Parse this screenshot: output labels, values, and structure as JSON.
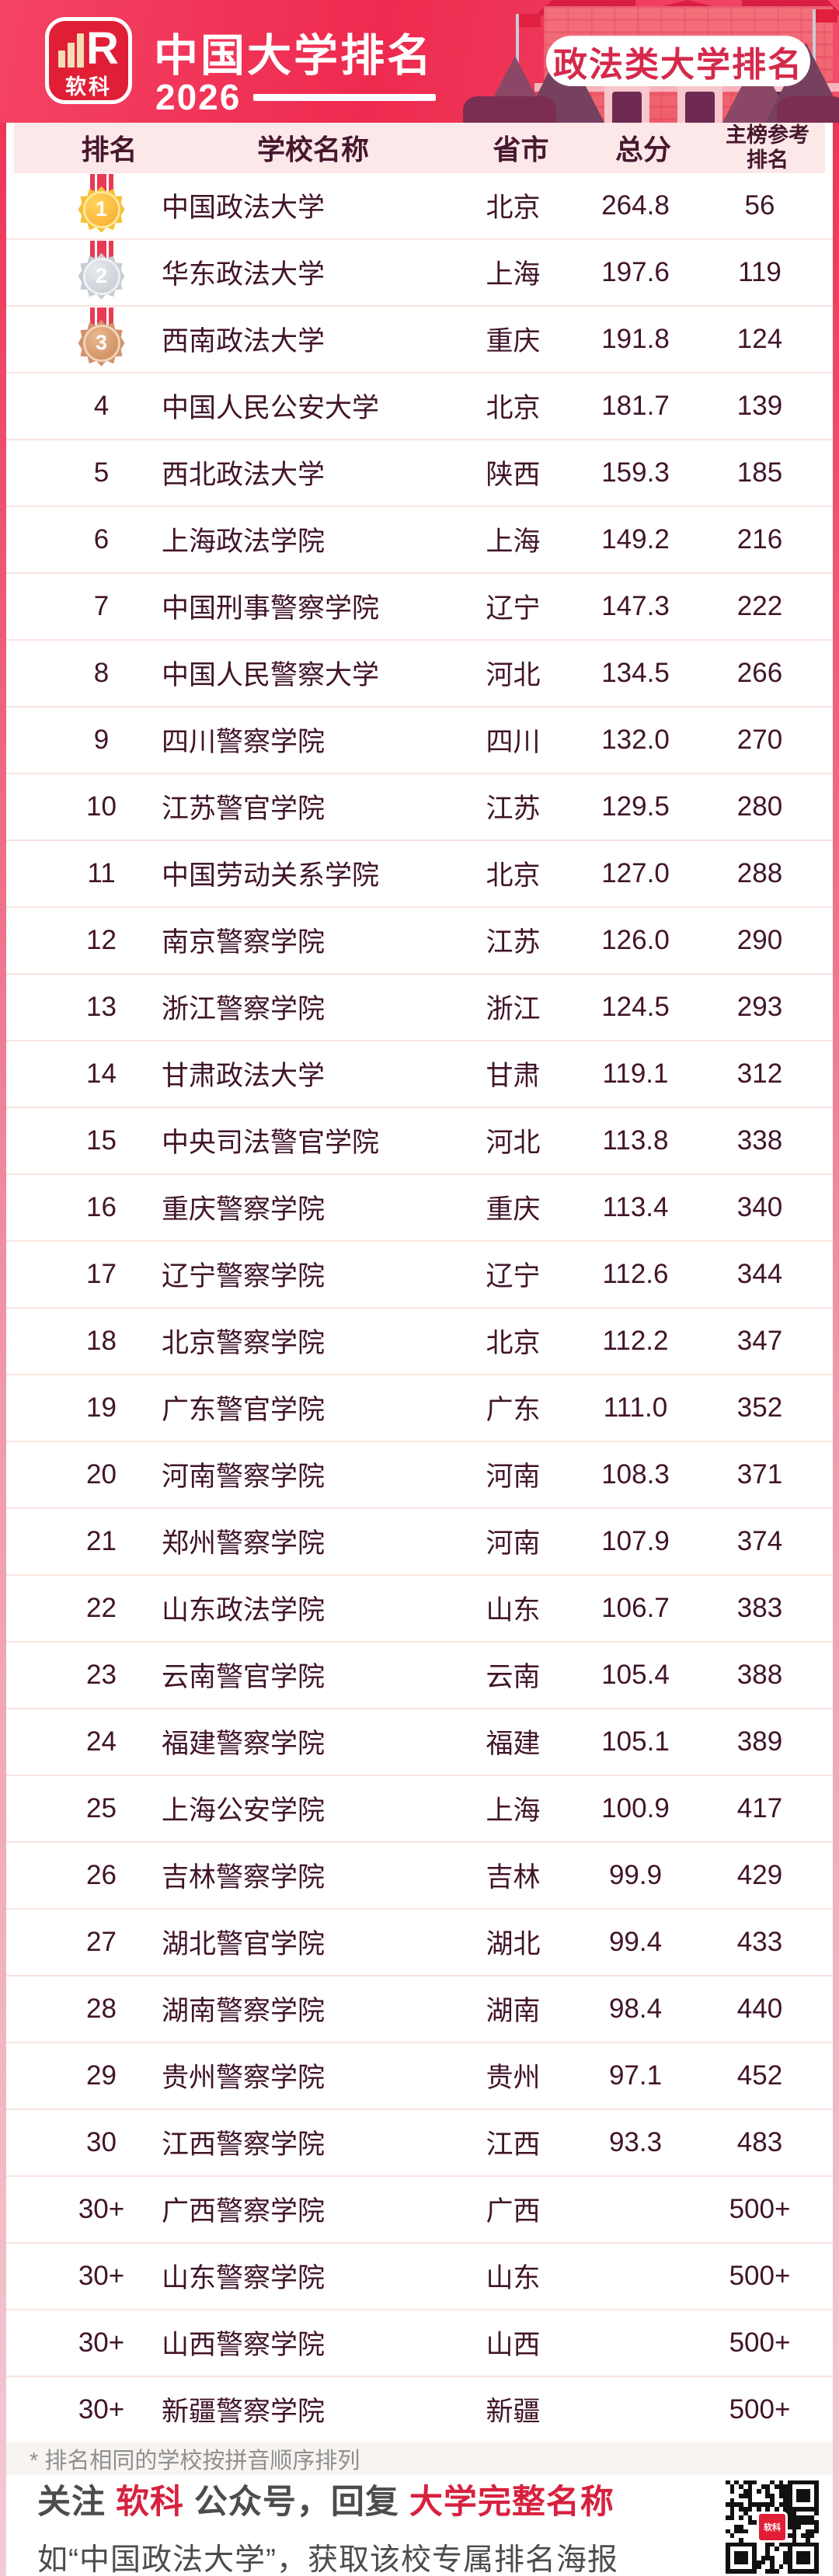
{
  "banner": {
    "logo_r": "R",
    "logo_text": "软科",
    "title": "中国大学排名",
    "year": "2026",
    "badge": "政法类大学排名"
  },
  "table_headers": {
    "rank": "排名",
    "school": "学校名称",
    "province": "省市",
    "score": "总分",
    "ref1": "主榜参考",
    "ref2": "排名"
  },
  "chart_data": {
    "type": "table",
    "title": "软科中国大学排名2026 · 政法类大学排名",
    "columns": [
      "排名",
      "学校名称",
      "省市",
      "总分",
      "主榜参考排名"
    ],
    "rows": [
      [
        "1",
        "中国政法大学",
        "北京",
        "264.8",
        "56"
      ],
      [
        "2",
        "华东政法大学",
        "上海",
        "197.6",
        "119"
      ],
      [
        "3",
        "西南政法大学",
        "重庆",
        "191.8",
        "124"
      ],
      [
        "4",
        "中国人民公安大学",
        "北京",
        "181.7",
        "139"
      ],
      [
        "5",
        "西北政法大学",
        "陕西",
        "159.3",
        "185"
      ],
      [
        "6",
        "上海政法学院",
        "上海",
        "149.2",
        "216"
      ],
      [
        "7",
        "中国刑事警察学院",
        "辽宁",
        "147.3",
        "222"
      ],
      [
        "8",
        "中国人民警察大学",
        "河北",
        "134.5",
        "266"
      ],
      [
        "9",
        "四川警察学院",
        "四川",
        "132.0",
        "270"
      ],
      [
        "10",
        "江苏警官学院",
        "江苏",
        "129.5",
        "280"
      ],
      [
        "11",
        "中国劳动关系学院",
        "北京",
        "127.0",
        "288"
      ],
      [
        "12",
        "南京警察学院",
        "江苏",
        "126.0",
        "290"
      ],
      [
        "13",
        "浙江警察学院",
        "浙江",
        "124.5",
        "293"
      ],
      [
        "14",
        "甘肃政法大学",
        "甘肃",
        "119.1",
        "312"
      ],
      [
        "15",
        "中央司法警官学院",
        "河北",
        "113.8",
        "338"
      ],
      [
        "16",
        "重庆警察学院",
        "重庆",
        "113.4",
        "340"
      ],
      [
        "17",
        "辽宁警察学院",
        "辽宁",
        "112.6",
        "344"
      ],
      [
        "18",
        "北京警察学院",
        "北京",
        "112.2",
        "347"
      ],
      [
        "19",
        "广东警官学院",
        "广东",
        "111.0",
        "352"
      ],
      [
        "20",
        "河南警察学院",
        "河南",
        "108.3",
        "371"
      ],
      [
        "21",
        "郑州警察学院",
        "河南",
        "107.9",
        "374"
      ],
      [
        "22",
        "山东政法学院",
        "山东",
        "106.7",
        "383"
      ],
      [
        "23",
        "云南警官学院",
        "云南",
        "105.4",
        "388"
      ],
      [
        "24",
        "福建警察学院",
        "福建",
        "105.1",
        "389"
      ],
      [
        "25",
        "上海公安学院",
        "上海",
        "100.9",
        "417"
      ],
      [
        "26",
        "吉林警察学院",
        "吉林",
        "99.9",
        "429"
      ],
      [
        "27",
        "湖北警官学院",
        "湖北",
        "99.4",
        "433"
      ],
      [
        "28",
        "湖南警察学院",
        "湖南",
        "98.4",
        "440"
      ],
      [
        "29",
        "贵州警察学院",
        "贵州",
        "97.1",
        "452"
      ],
      [
        "30",
        "江西警察学院",
        "江西",
        "93.3",
        "483"
      ],
      [
        "30+",
        "广西警察学院",
        "广西",
        "",
        "500+"
      ],
      [
        "30+",
        "山东警察学院",
        "山东",
        "",
        "500+"
      ],
      [
        "30+",
        "山西警察学院",
        "山西",
        "",
        "500+"
      ],
      [
        "30+",
        "新疆警察学院",
        "新疆",
        "",
        "500+"
      ]
    ]
  },
  "footnote": "* 排名相同的学校按拼音顺序排列",
  "footer": {
    "p1": "关注",
    "brand": "软科",
    "p2": "公众号，回复",
    "hl": "大学完整名称",
    "line2": "如“中国政法大学”，获取该校专属排名海报"
  },
  "colors": {
    "banner_red": "#ee2a4f",
    "badge_text": "#d5294b",
    "header_bg": "#fce8e9",
    "row_text": "#41142a",
    "row_divider": "#fae3e0",
    "footer_red": "#d7213f",
    "footer_divider": "#f3aebf"
  }
}
